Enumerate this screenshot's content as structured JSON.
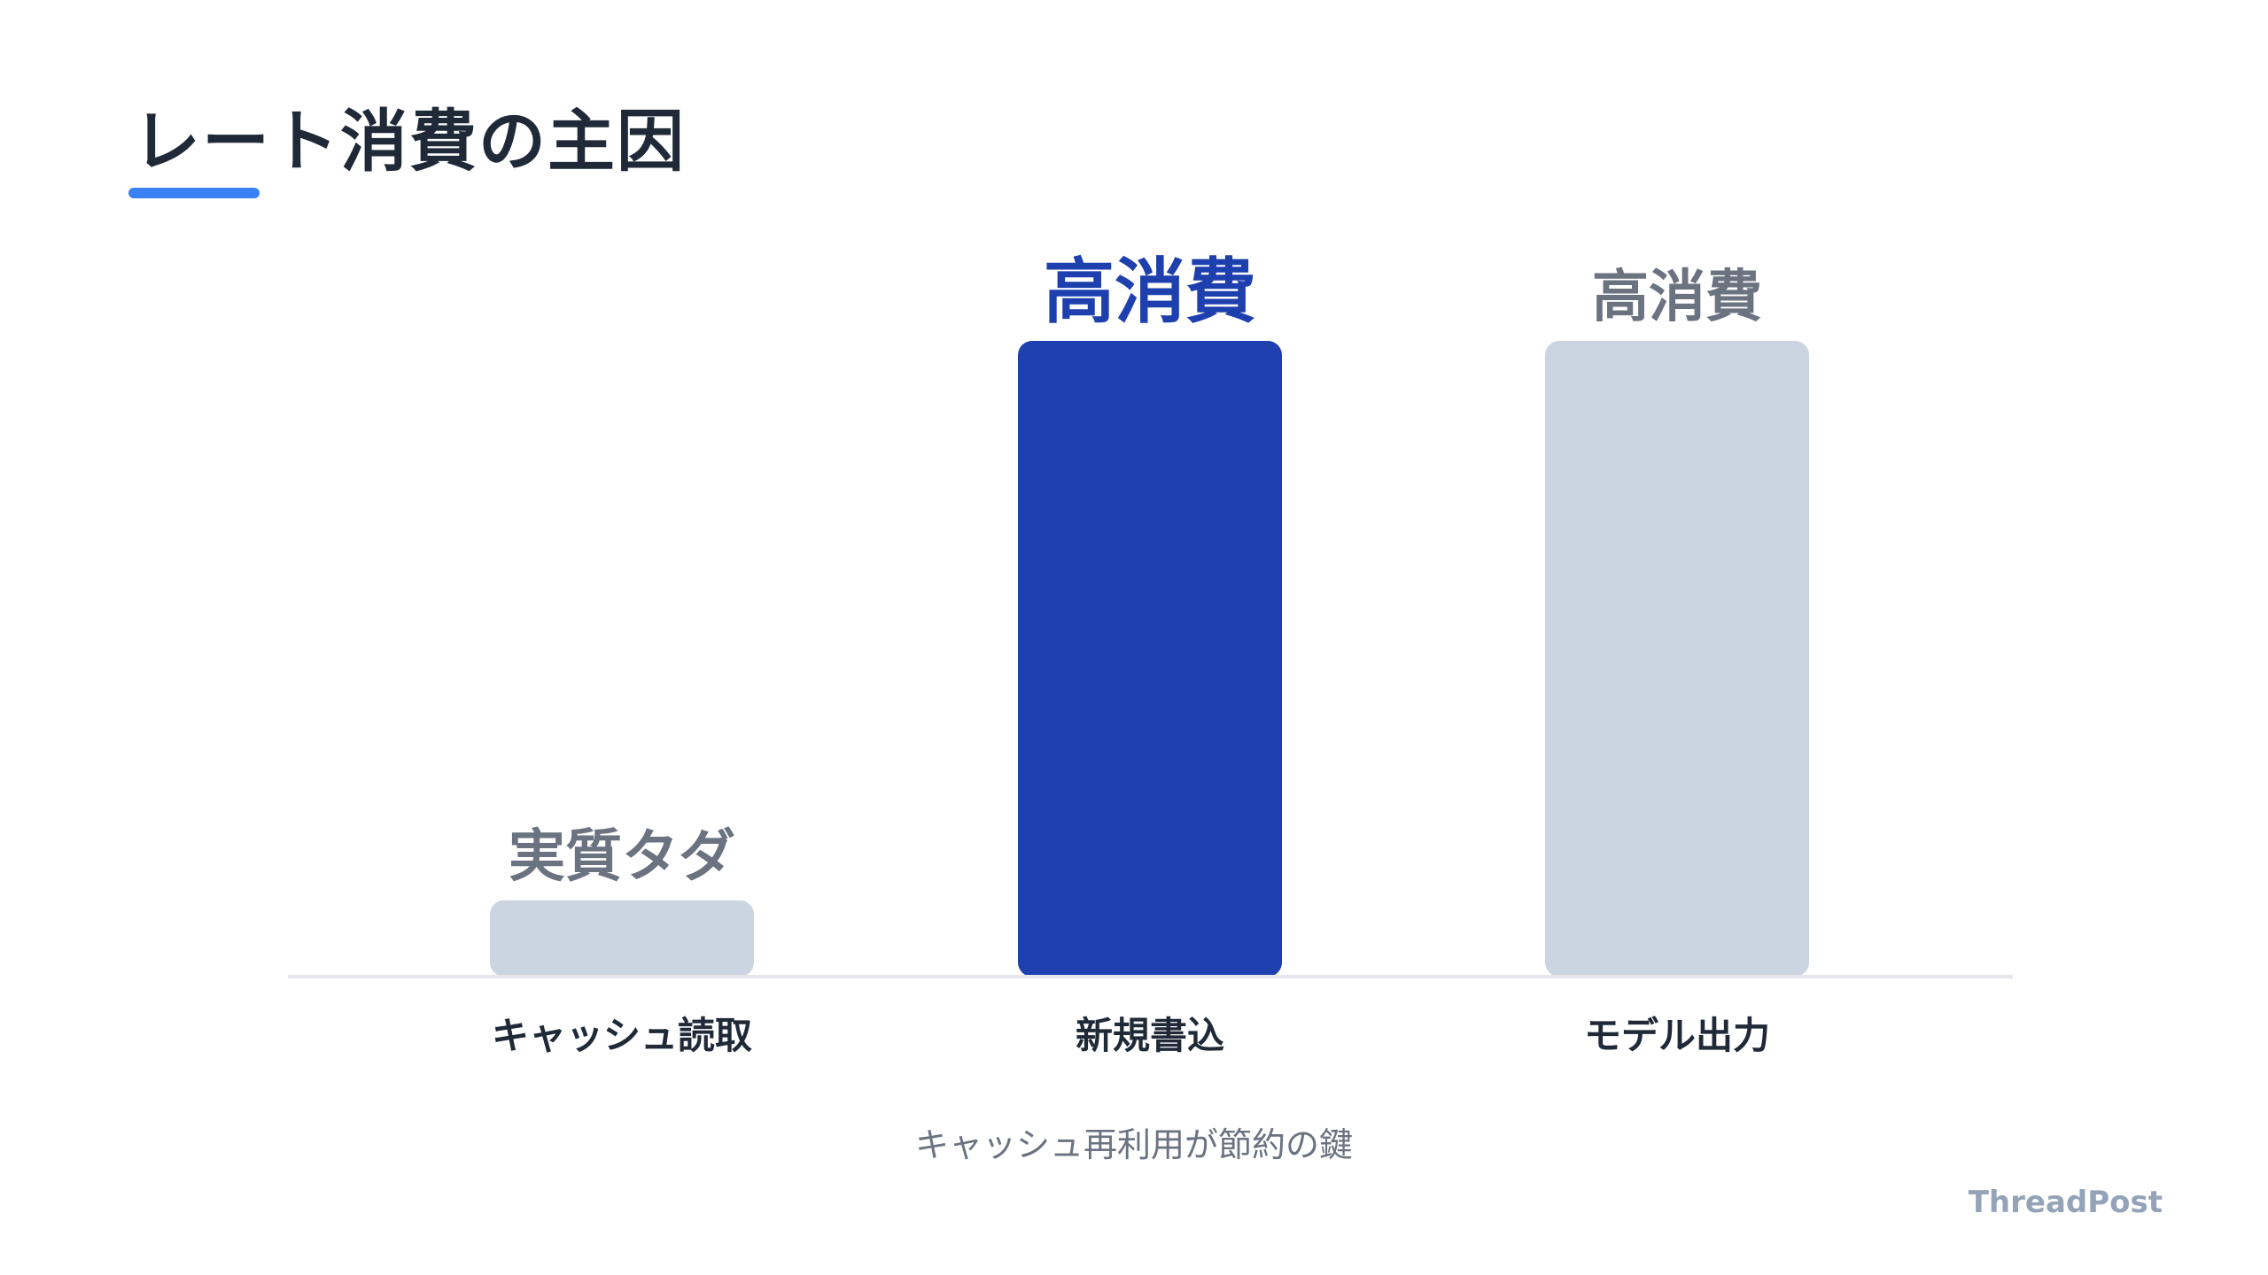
{
  "title": "レート消費の主因",
  "subtitle": "キャッシュ再利用が節約の鍵",
  "brand": "ThreadPost",
  "colors": {
    "accent": "#3b82f6",
    "highlight_bar": "#1e3fae",
    "muted_bar": "#cbd5e1",
    "highlight_label": "#1e3fae",
    "muted_label": "#6b7280",
    "category_label": "#1f2937",
    "baseline": "#e5e7eb"
  },
  "chart_data": {
    "type": "bar",
    "title": "",
    "xlabel": "",
    "ylabel": "",
    "categories": [
      "キャッシュ読取",
      "新規書込",
      "モデル出力"
    ],
    "values": [
      12,
      100,
      100
    ],
    "value_labels": [
      "実質タダ",
      "高消費",
      "高消費"
    ],
    "highlight_index": 1,
    "ylim": [
      0,
      100
    ],
    "grid": false,
    "legend": "none"
  }
}
